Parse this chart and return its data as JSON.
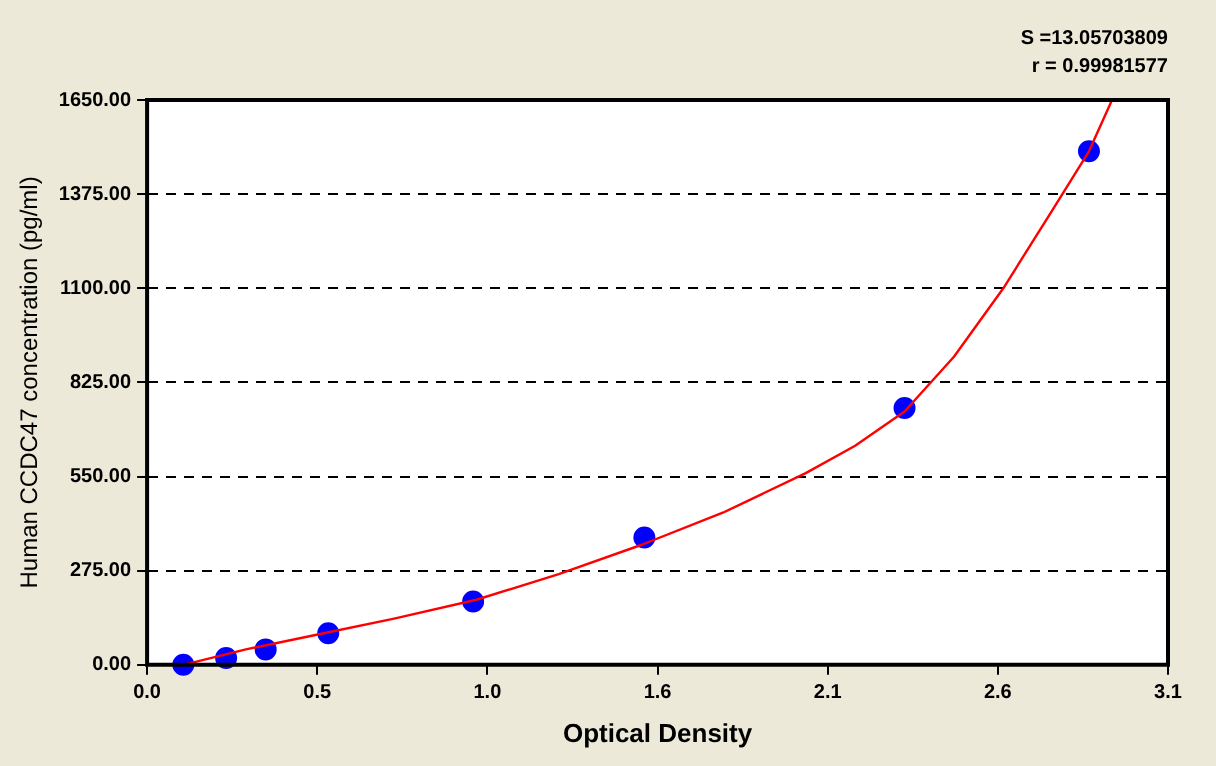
{
  "chart_data": {
    "type": "scatter",
    "xlabel": "Optical Density",
    "ylabel": "Human CCDC47 concentration (pg/ml)",
    "annotations": [
      "S =13.05703809",
      "r = 0.99981577"
    ],
    "xlim": [
      0,
      3.1
    ],
    "xticks": [
      {
        "value": 0,
        "label": "0.0"
      },
      {
        "value": 0.5167,
        "label": "0.5"
      },
      {
        "value": 1.0333,
        "label": "1.0"
      },
      {
        "value": 1.55,
        "label": "1.6"
      },
      {
        "value": 2.0667,
        "label": "2.1"
      },
      {
        "value": 2.5833,
        "label": "2.6"
      },
      {
        "value": 3.1,
        "label": "3.1"
      }
    ],
    "ylim": [
      0,
      1650
    ],
    "yticks": [
      {
        "value": 0,
        "label": "0.00"
      },
      {
        "value": 275,
        "label": "275.00"
      },
      {
        "value": 550,
        "label": "550.00"
      },
      {
        "value": 825,
        "label": "825.00"
      },
      {
        "value": 1100,
        "label": "1100.00"
      },
      {
        "value": 1375,
        "label": "1375.00"
      },
      {
        "value": 1650,
        "label": "1650.00"
      }
    ],
    "grid": "y",
    "legend": false,
    "series": [
      {
        "type": "line",
        "color": "#ff0000",
        "marker": "none",
        "line_style": "solid",
        "x": [
          0.11,
          0.3,
          0.5,
          0.75,
          1.0,
          1.25,
          1.5,
          1.75,
          2.0,
          2.15,
          2.3,
          2.45,
          2.6,
          2.75,
          2.86,
          2.93
        ],
        "values": [
          0,
          45,
          85,
          135,
          190,
          265,
          350,
          445,
          560,
          640,
          740,
          900,
          1100,
          1330,
          1500,
          1650
        ]
      },
      {
        "color": "#0000ff",
        "marker": "circle",
        "x": [
          0.11,
          0.24,
          0.36,
          0.55,
          0.99,
          1.51,
          2.3,
          2.86
        ],
        "values": [
          0,
          20,
          45,
          92,
          185,
          372,
          750,
          1500
        ]
      }
    ]
  }
}
